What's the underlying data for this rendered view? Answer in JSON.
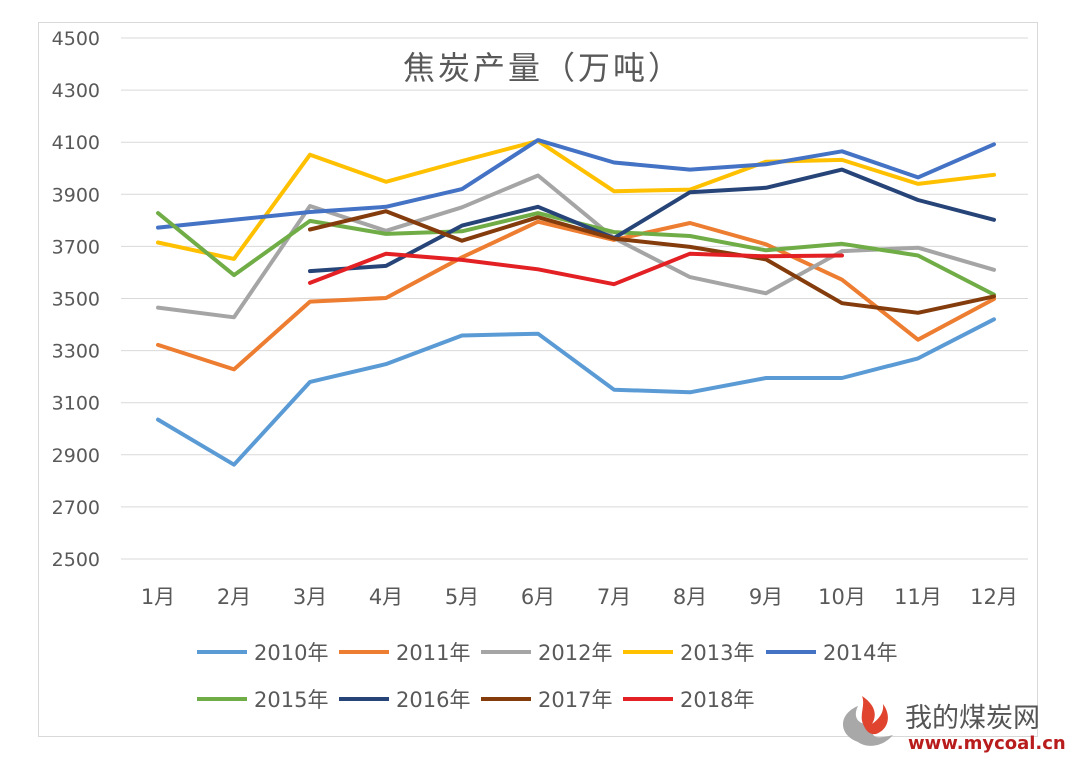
{
  "chart_data": {
    "type": "line",
    "title": "焦炭产量（万吨）",
    "categories": [
      "1月",
      "2月",
      "3月",
      "4月",
      "5月",
      "6月",
      "7月",
      "8月",
      "9月",
      "10月",
      "11月",
      "12月"
    ],
    "yticks": [
      4500,
      4300,
      4100,
      3900,
      3700,
      3500,
      3300,
      3100,
      2900,
      2700,
      2500
    ],
    "ylim": [
      2500,
      4500
    ],
    "grid": true,
    "legend_position": "bottom",
    "series": [
      {
        "name": "2010年",
        "color": "#5b9bd5",
        "values": [
          3035,
          2862,
          3180,
          3248,
          3358,
          3365,
          3150,
          3140,
          3195,
          3195,
          3270,
          3420
        ]
      },
      {
        "name": "2011年",
        "color": "#ed7d31",
        "values": [
          3322,
          3228,
          3488,
          3502,
          3658,
          3795,
          3725,
          3790,
          3708,
          3572,
          3342,
          3498
        ]
      },
      {
        "name": "2012年",
        "color": "#a5a5a5",
        "values": [
          3465,
          3428,
          3855,
          3760,
          3850,
          3972,
          3732,
          3582,
          3520,
          3682,
          3695,
          3610
        ]
      },
      {
        "name": "2013年",
        "color": "#ffc000",
        "values": [
          3715,
          3652,
          4052,
          3948,
          4028,
          4105,
          3912,
          3918,
          4025,
          4032,
          3940,
          3975
        ]
      },
      {
        "name": "2014年",
        "color": "#4472c4",
        "values": [
          3772,
          3802,
          3832,
          3852,
          3920,
          4108,
          4022,
          3995,
          4015,
          4065,
          3965,
          4092
        ]
      },
      {
        "name": "2015年",
        "color": "#70ad47",
        "values": [
          3828,
          3590,
          3798,
          3748,
          3758,
          3828,
          3755,
          3740,
          3685,
          3710,
          3665,
          3515
        ]
      },
      {
        "name": "2016年",
        "color": "#264478",
        "values": [
          null,
          null,
          3605,
          3625,
          3780,
          3852,
          3732,
          3908,
          3925,
          3995,
          3878,
          3802
        ]
      },
      {
        "name": "2017年",
        "color": "#843c0c",
        "values": [
          null,
          null,
          3765,
          3835,
          3722,
          3812,
          3730,
          3698,
          3650,
          3482,
          3445,
          3508
        ]
      },
      {
        "name": "2018年",
        "color": "#e32124",
        "values": [
          null,
          null,
          3560,
          3672,
          3648,
          3612,
          3555,
          3672,
          3662,
          3665,
          null,
          null
        ]
      }
    ]
  },
  "watermark": {
    "site_name": "我的煤炭网",
    "url": "www.mycoal.cn"
  }
}
